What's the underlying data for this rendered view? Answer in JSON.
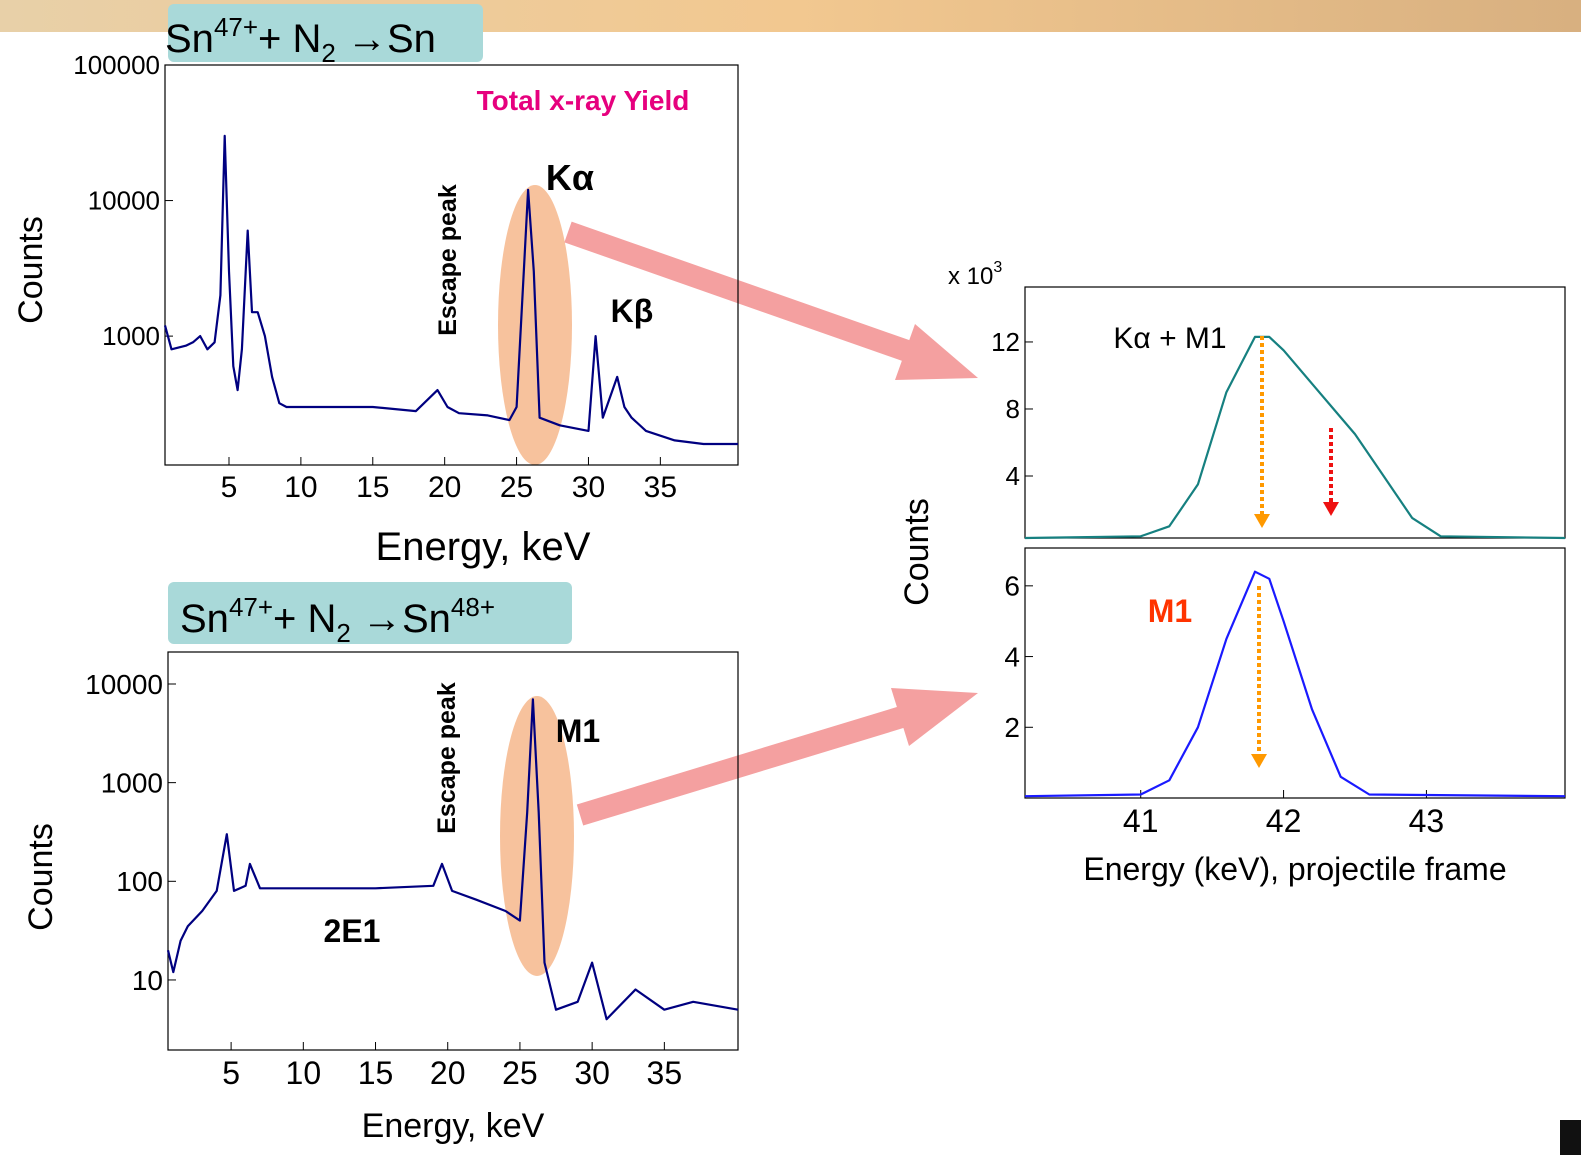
{
  "chart_data": [
    {
      "type": "line",
      "title": [
        "Sn",
        "47+",
        "+ N",
        "2",
        " →Sn"
      ],
      "labels": [
        "Total x-ray Yield",
        "Escape peak",
        "Kα",
        "Kβ"
      ],
      "ylabel": "Counts",
      "xlabel": "Energy, keV",
      "log_y": true,
      "color": "#000080",
      "xlim": [
        0.55,
        40.4
      ],
      "ylim": [
        112,
        100000
      ],
      "xticks": [
        5,
        10,
        15,
        20,
        25,
        30,
        35
      ],
      "yticks": [
        1000,
        10000,
        100000
      ],
      "x": [
        0.55,
        1,
        2,
        2.5,
        3,
        3.5,
        4,
        4.4,
        4.7,
        5,
        5.3,
        5.6,
        5.9,
        6.3,
        6.6,
        7,
        7.5,
        8,
        8.5,
        9,
        12,
        15,
        18,
        19.5,
        20.2,
        21,
        23,
        24.5,
        25,
        25.5,
        25.8,
        26.2,
        26.6,
        28,
        30,
        30.5,
        31,
        32,
        32.5,
        33,
        34,
        36,
        38,
        40.4
      ],
      "values": [
        1200,
        800,
        850,
        900,
        1000,
        800,
        900,
        2000,
        30000,
        3000,
        600,
        400,
        800,
        6000,
        1500,
        1500,
        1000,
        500,
        320,
        300,
        300,
        300,
        280,
        400,
        300,
        270,
        260,
        240,
        300,
        3000,
        12000,
        3000,
        250,
        220,
        200,
        1000,
        250,
        500,
        300,
        250,
        200,
        170,
        160,
        160
      ]
    },
    {
      "type": "line",
      "title": [
        "Sn",
        "47+",
        "+ N",
        "2",
        " →Sn",
        "48+"
      ],
      "labels": [
        "Escape peak",
        "M1",
        "2E1"
      ],
      "ylabel": "Counts",
      "xlabel": "Energy, keV",
      "log_y": true,
      "color": "#000080",
      "xlim": [
        0.63,
        40.1
      ],
      "ylim": [
        1.95,
        21100
      ],
      "xticks": [
        5,
        10,
        15,
        20,
        25,
        30,
        35
      ],
      "yticks": [
        10,
        100,
        1000,
        10000
      ],
      "x": [
        0.63,
        1,
        1.5,
        2,
        3,
        4,
        4.7,
        5.2,
        6,
        6.3,
        7,
        10,
        15,
        19,
        19.6,
        20.3,
        22,
        24,
        25,
        25.5,
        25.9,
        26.3,
        26.7,
        27.5,
        29,
        30,
        31,
        33,
        35,
        37,
        40.1
      ],
      "values": [
        20,
        12,
        25,
        35,
        50,
        80,
        300,
        80,
        90,
        150,
        85,
        85,
        85,
        90,
        150,
        80,
        65,
        50,
        40,
        500,
        7000,
        500,
        15,
        5,
        6,
        15,
        4,
        8,
        5,
        6,
        5
      ]
    },
    {
      "type": "line",
      "multiplier": [
        "x 10",
        "3"
      ],
      "labels": [
        "Kα + M1"
      ],
      "color": "#168080",
      "xlim": [
        40.19,
        43.97
      ],
      "ylim": [
        0.3,
        15.28
      ],
      "yticks": [
        4,
        8,
        12
      ],
      "x": [
        40.19,
        41,
        41.2,
        41.4,
        41.6,
        41.8,
        41.9,
        42,
        42.2,
        42.4,
        42.5,
        42.7,
        42.9,
        43.1,
        43.97
      ],
      "values": [
        0.3,
        0.4,
        1,
        3.5,
        9,
        12.3,
        12.3,
        11.5,
        9.5,
        7.5,
        6.5,
        4,
        1.5,
        0.4,
        0.3
      ]
    },
    {
      "type": "line",
      "labels": [
        "M1"
      ],
      "ylabel": "Counts",
      "xlabel": "Energy (keV), projectile frame",
      "color": "#1a1aff",
      "xlim": [
        40.19,
        43.97
      ],
      "ylim": [
        0,
        7.07
      ],
      "xticks": [
        41,
        42,
        43
      ],
      "yticks": [
        2,
        4,
        6
      ],
      "x": [
        40.19,
        41,
        41.2,
        41.4,
        41.6,
        41.8,
        41.9,
        42,
        42.2,
        42.4,
        42.6,
        43.97
      ],
      "values": [
        0.05,
        0.1,
        0.5,
        2,
        4.5,
        6.4,
        6.2,
        5,
        2.5,
        0.6,
        0.1,
        0.05
      ]
    }
  ]
}
